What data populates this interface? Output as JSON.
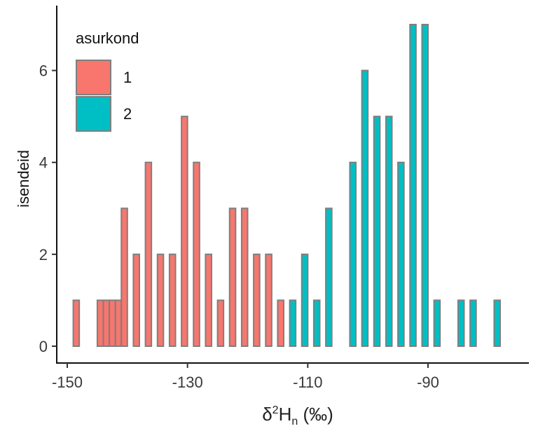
{
  "chart_data": {
    "type": "bar",
    "subtype": "histogram",
    "bin_width": 1,
    "xlabel": {
      "symbol": "δ",
      "sup": "2",
      "main": "H",
      "sub": "n",
      "unit": " (‰)"
    },
    "ylabel": "isendeid",
    "xlim": [
      -151.5,
      -77
    ],
    "ylim": [
      0,
      7
    ],
    "xticks": [
      -150,
      -130,
      -110,
      -90
    ],
    "xtick_labels": [
      "-150",
      "-130",
      "-110",
      "-90"
    ],
    "yticks": [
      0,
      2,
      4,
      6
    ],
    "ytick_labels": [
      "0",
      "2",
      "4",
      "6"
    ],
    "grid": false,
    "legend": {
      "title": "asurkond",
      "position": "top-left",
      "entries": [
        {
          "label": "1",
          "color": "#f8766d"
        },
        {
          "label": "2",
          "color": "#00bfc4"
        }
      ]
    },
    "bar_edge_color": "#7f7f7f",
    "series": [
      {
        "name": "1",
        "color": "#f8766d",
        "bins": [
          {
            "x0": -149,
            "x1": -148,
            "value": 1
          },
          {
            "x0": -145,
            "x1": -144,
            "value": 1
          },
          {
            "x0": -144,
            "x1": -143,
            "value": 1
          },
          {
            "x0": -143,
            "x1": -142,
            "value": 1
          },
          {
            "x0": -142,
            "x1": -141,
            "value": 1
          },
          {
            "x0": -141,
            "x1": -140,
            "value": 3
          },
          {
            "x0": -139,
            "x1": -138,
            "value": 2
          },
          {
            "x0": -137,
            "x1": -136,
            "value": 4
          },
          {
            "x0": -135,
            "x1": -134,
            "value": 2
          },
          {
            "x0": -133,
            "x1": -132,
            "value": 2
          },
          {
            "x0": -131,
            "x1": -130,
            "value": 5
          },
          {
            "x0": -129,
            "x1": -128,
            "value": 4
          },
          {
            "x0": -127,
            "x1": -126,
            "value": 2
          },
          {
            "x0": -125,
            "x1": -124,
            "value": 1
          },
          {
            "x0": -123,
            "x1": -122,
            "value": 3
          },
          {
            "x0": -121,
            "x1": -120,
            "value": 3
          },
          {
            "x0": -119,
            "x1": -118,
            "value": 2
          },
          {
            "x0": -117,
            "x1": -116,
            "value": 2
          },
          {
            "x0": -115,
            "x1": -114,
            "value": 1
          }
        ]
      },
      {
        "name": "2",
        "color": "#00bfc4",
        "bins": [
          {
            "x0": -113,
            "x1": -112,
            "value": 1
          },
          {
            "x0": -111,
            "x1": -110,
            "value": 2
          },
          {
            "x0": -109,
            "x1": -108,
            "value": 1
          },
          {
            "x0": -107,
            "x1": -106,
            "value": 3
          },
          {
            "x0": -103,
            "x1": -102,
            "value": 4
          },
          {
            "x0": -101,
            "x1": -100,
            "value": 6
          },
          {
            "x0": -99,
            "x1": -98,
            "value": 5
          },
          {
            "x0": -97,
            "x1": -96,
            "value": 5
          },
          {
            "x0": -95,
            "x1": -94,
            "value": 4
          },
          {
            "x0": -93,
            "x1": -92,
            "value": 7
          },
          {
            "x0": -91,
            "x1": -90,
            "value": 7
          },
          {
            "x0": -89,
            "x1": -88,
            "value": 1
          },
          {
            "x0": -85,
            "x1": -84,
            "value": 1
          },
          {
            "x0": -83,
            "x1": -82,
            "value": 1
          },
          {
            "x0": -79,
            "x1": -78,
            "value": 1
          }
        ]
      }
    ]
  }
}
